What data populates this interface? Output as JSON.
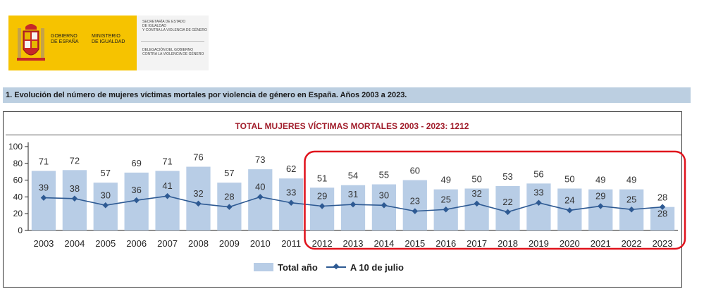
{
  "header": {
    "logo_left_line1": "GOBIERNO",
    "logo_left_line2": "DE ESPAÑA",
    "logo_mid_line1": "MINISTERIO",
    "logo_mid_line2": "DE IGUALDAD",
    "secretaria_l1": "SECRETARÍA DE ESTADO",
    "secretaria_l2": "DE IGUALDAD",
    "secretaria_l3": "Y CONTRA LA VIOLENCIA DE GÉNERO",
    "delegacion_l1": "DELEGACIÓN DEL GOBIERNO",
    "delegacion_l2": "CONTRA LA VIOLENCIA DE GÉNERO"
  },
  "section_title": "1. Evolución del número de mujeres víctimas mortales por violencia de género en España. Años 2003 a 2023.",
  "chart_data": {
    "type": "bar",
    "title": "TOTAL MUJERES VÍCTIMAS MORTALES 2003 - 2023: 1212",
    "categories": [
      "2003",
      "2004",
      "2005",
      "2006",
      "2007",
      "2008",
      "2009",
      "2010",
      "2011",
      "2012",
      "2013",
      "2014",
      "2015",
      "2016",
      "2017",
      "2018",
      "2019",
      "2020",
      "2021",
      "2022",
      "2023"
    ],
    "series": [
      {
        "name": "Total año",
        "type": "bar",
        "values": [
          71,
          72,
          57,
          69,
          71,
          76,
          57,
          73,
          62,
          51,
          54,
          55,
          60,
          49,
          50,
          53,
          56,
          50,
          49,
          49,
          28
        ]
      },
      {
        "name": "A 10 de julio",
        "type": "line",
        "values": [
          39,
          38,
          30,
          36,
          41,
          32,
          28,
          40,
          33,
          29,
          31,
          30,
          23,
          25,
          32,
          22,
          33,
          24,
          29,
          25,
          28
        ]
      }
    ],
    "yticks": [
      0,
      20,
      40,
      60,
      80,
      100
    ],
    "ylim": [
      0,
      100
    ],
    "legend": "bottom",
    "colors": {
      "bar": "#b8cde6",
      "line": "#2e5a93",
      "highlight": "#e0121c",
      "title": "#a11d2b"
    },
    "highlight_range": [
      "2012",
      "2023"
    ]
  }
}
